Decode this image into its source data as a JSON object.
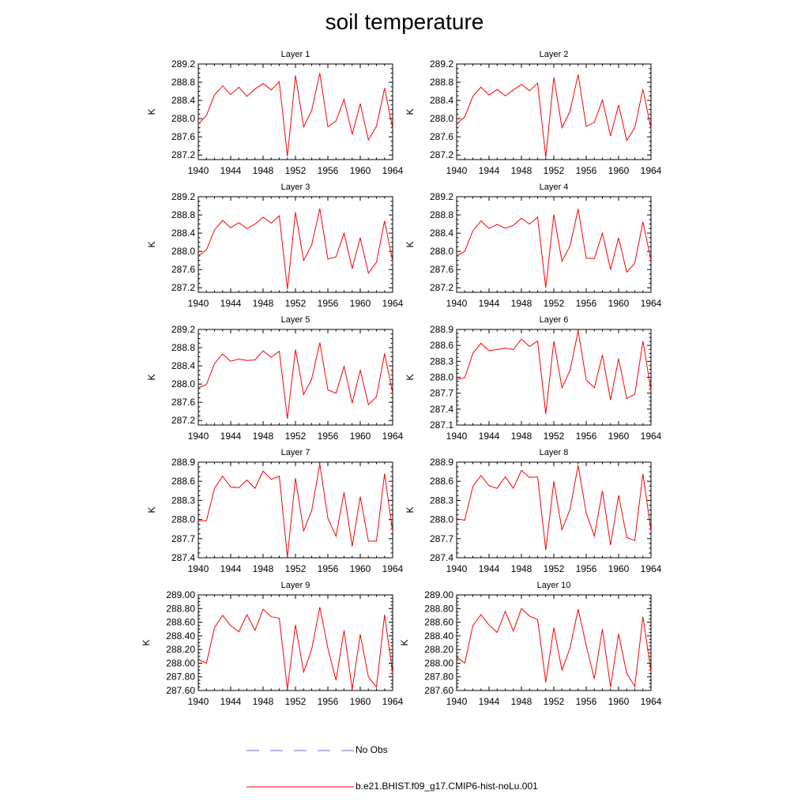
{
  "title": "soil temperature",
  "chart_data": [
    {
      "type": "line",
      "title": "Layer 1",
      "ylabel": "K",
      "xlim": [
        1940,
        1964
      ],
      "ylim": [
        287.1,
        289.2
      ],
      "yticks": [
        "287.2",
        "287.6",
        "288.0",
        "288.4",
        "288.8",
        "289.2"
      ],
      "xticks": [
        "1940",
        "1944",
        "1948",
        "1952",
        "1956",
        "1960",
        "1964"
      ],
      "x": [
        1940,
        1941,
        1942,
        1943,
        1944,
        1945,
        1946,
        1947,
        1948,
        1949,
        1950,
        1951,
        1952,
        1953,
        1954,
        1955,
        1956,
        1957,
        1958,
        1959,
        1960,
        1961,
        1962,
        1963,
        1964
      ],
      "series": [
        {
          "name": "b.e21.BHIST.f09_g17.CMIP6-hist-noLu.001",
          "values": [
            287.88,
            288.07,
            288.52,
            288.72,
            288.53,
            288.69,
            288.49,
            288.65,
            288.77,
            288.63,
            288.81,
            287.17,
            288.95,
            287.82,
            288.18,
            289.0,
            287.82,
            287.95,
            288.42,
            287.65,
            288.33,
            287.53,
            287.83,
            288.67,
            287.78
          ]
        }
      ]
    },
    {
      "type": "line",
      "title": "Layer 2",
      "ylabel": "K",
      "xlim": [
        1940,
        1964
      ],
      "ylim": [
        287.1,
        289.2
      ],
      "yticks": [
        "287.2",
        "287.6",
        "288.0",
        "288.4",
        "288.8",
        "289.2"
      ],
      "xticks": [
        "1940",
        "1944",
        "1948",
        "1952",
        "1956",
        "1960",
        "1964"
      ],
      "x": [
        1940,
        1941,
        1942,
        1943,
        1944,
        1945,
        1946,
        1947,
        1948,
        1949,
        1950,
        1951,
        1952,
        1953,
        1954,
        1955,
        1956,
        1957,
        1958,
        1959,
        1960,
        1961,
        1962,
        1963,
        1964
      ],
      "series": [
        {
          "name": "b.e21.BHIST.f09_g17.CMIP6-hist-noLu.001",
          "values": [
            287.88,
            288.04,
            288.49,
            288.69,
            288.52,
            288.64,
            288.5,
            288.63,
            288.75,
            288.61,
            288.78,
            287.15,
            288.91,
            287.8,
            288.16,
            288.97,
            287.83,
            287.92,
            288.41,
            287.62,
            288.3,
            287.52,
            287.8,
            288.65,
            287.78
          ]
        }
      ]
    },
    {
      "type": "line",
      "title": "Layer 3",
      "ylabel": "K",
      "xlim": [
        1940,
        1964
      ],
      "ylim": [
        287.1,
        289.2
      ],
      "yticks": [
        "287.2",
        "287.6",
        "288.0",
        "288.4",
        "288.8",
        "289.2"
      ],
      "xticks": [
        "1940",
        "1944",
        "1948",
        "1952",
        "1956",
        "1960",
        "1964"
      ],
      "x": [
        1940,
        1941,
        1942,
        1943,
        1944,
        1945,
        1946,
        1947,
        1948,
        1949,
        1950,
        1951,
        1952,
        1953,
        1954,
        1955,
        1956,
        1957,
        1958,
        1959,
        1960,
        1961,
        1962,
        1963,
        1964
      ],
      "series": [
        {
          "name": "b.e21.BHIST.f09_g17.CMIP6-hist-noLu.001",
          "values": [
            287.9,
            288.03,
            288.47,
            288.68,
            288.52,
            288.63,
            288.5,
            288.6,
            288.75,
            288.62,
            288.78,
            287.17,
            288.86,
            287.8,
            288.14,
            288.94,
            287.83,
            287.88,
            288.4,
            287.62,
            288.3,
            287.52,
            287.76,
            288.67,
            287.78
          ]
        }
      ]
    },
    {
      "type": "line",
      "title": "Layer 4",
      "ylabel": "K",
      "xlim": [
        1940,
        1964
      ],
      "ylim": [
        287.1,
        289.2
      ],
      "yticks": [
        "287.2",
        "287.6",
        "288.0",
        "288.4",
        "288.8",
        "289.2"
      ],
      "xticks": [
        "1940",
        "1944",
        "1948",
        "1952",
        "1956",
        "1960",
        "1964"
      ],
      "x": [
        1940,
        1941,
        1942,
        1943,
        1944,
        1945,
        1946,
        1947,
        1948,
        1949,
        1950,
        1951,
        1952,
        1953,
        1954,
        1955,
        1956,
        1957,
        1958,
        1959,
        1960,
        1961,
        1962,
        1963,
        1964
      ],
      "series": [
        {
          "name": "b.e21.BHIST.f09_g17.CMIP6-hist-noLu.001",
          "values": [
            287.9,
            288.0,
            288.45,
            288.67,
            288.5,
            288.59,
            288.51,
            288.57,
            288.73,
            288.6,
            288.75,
            287.2,
            288.81,
            287.78,
            288.12,
            288.93,
            287.85,
            287.84,
            288.4,
            287.6,
            288.3,
            287.54,
            287.74,
            288.65,
            287.8
          ]
        }
      ]
    },
    {
      "type": "line",
      "title": "Layer 5",
      "ylabel": "K",
      "xlim": [
        1940,
        1964
      ],
      "ylim": [
        287.1,
        289.2
      ],
      "yticks": [
        "287.2",
        "287.6",
        "288.0",
        "288.4",
        "288.8",
        "289.2"
      ],
      "xticks": [
        "1940",
        "1944",
        "1948",
        "1952",
        "1956",
        "1960",
        "1964"
      ],
      "x": [
        1940,
        1941,
        1942,
        1943,
        1944,
        1945,
        1946,
        1947,
        1948,
        1949,
        1950,
        1951,
        1952,
        1953,
        1954,
        1955,
        1956,
        1957,
        1958,
        1959,
        1960,
        1961,
        1962,
        1963,
        1964
      ],
      "series": [
        {
          "name": "b.e21.BHIST.f09_g17.CMIP6-hist-noLu.001",
          "values": [
            287.92,
            287.99,
            288.45,
            288.66,
            288.5,
            288.55,
            288.52,
            288.53,
            288.73,
            288.59,
            288.72,
            287.24,
            288.76,
            287.77,
            288.11,
            288.91,
            287.87,
            287.8,
            288.39,
            287.58,
            288.31,
            287.55,
            287.72,
            288.67,
            287.8
          ]
        }
      ]
    },
    {
      "type": "line",
      "title": "Layer 6",
      "ylabel": "K",
      "xlim": [
        1940,
        1964
      ],
      "ylim": [
        287.1,
        288.9
      ],
      "yticks": [
        "287.1",
        "287.4",
        "287.7",
        "288.0",
        "288.3",
        "288.6",
        "288.9"
      ],
      "xticks": [
        "1940",
        "1944",
        "1948",
        "1952",
        "1956",
        "1960",
        "1964"
      ],
      "x": [
        1940,
        1941,
        1942,
        1943,
        1944,
        1945,
        1946,
        1947,
        1948,
        1949,
        1950,
        1951,
        1952,
        1953,
        1954,
        1955,
        1956,
        1957,
        1958,
        1959,
        1960,
        1961,
        1962,
        1963,
        1964
      ],
      "series": [
        {
          "name": "b.e21.BHIST.f09_g17.CMIP6-hist-noLu.001",
          "values": [
            287.96,
            287.99,
            288.45,
            288.64,
            288.5,
            288.52,
            288.55,
            288.52,
            288.72,
            288.58,
            288.68,
            287.31,
            288.68,
            287.8,
            288.13,
            288.87,
            287.95,
            287.8,
            288.42,
            287.57,
            288.35,
            287.6,
            287.68,
            288.68,
            287.75
          ]
        }
      ]
    },
    {
      "type": "line",
      "title": "Layer 7",
      "ylabel": "K",
      "xlim": [
        1940,
        1964
      ],
      "ylim": [
        287.4,
        288.9
      ],
      "yticks": [
        "287.4",
        "287.7",
        "288.0",
        "288.3",
        "288.6",
        "288.9"
      ],
      "xticks": [
        "1940",
        "1944",
        "1948",
        "1952",
        "1956",
        "1960",
        "1964"
      ],
      "x": [
        1940,
        1941,
        1942,
        1943,
        1944,
        1945,
        1946,
        1947,
        1948,
        1949,
        1950,
        1951,
        1952,
        1953,
        1954,
        1955,
        1956,
        1957,
        1958,
        1959,
        1960,
        1961,
        1962,
        1963,
        1964
      ],
      "series": [
        {
          "name": "b.e21.BHIST.f09_g17.CMIP6-hist-noLu.001",
          "values": [
            287.98,
            287.98,
            288.49,
            288.68,
            288.51,
            288.5,
            288.62,
            288.49,
            288.76,
            288.63,
            288.68,
            287.41,
            288.65,
            287.82,
            288.14,
            288.87,
            288.02,
            287.74,
            288.43,
            287.58,
            288.36,
            287.66,
            287.66,
            288.72,
            287.8
          ]
        }
      ]
    },
    {
      "type": "line",
      "title": "Layer 8",
      "ylabel": "K",
      "xlim": [
        1940,
        1964
      ],
      "ylim": [
        287.4,
        288.9
      ],
      "yticks": [
        "287.4",
        "287.7",
        "288.0",
        "288.3",
        "288.6",
        "288.9"
      ],
      "xticks": [
        "1940",
        "1944",
        "1948",
        "1952",
        "1956",
        "1960",
        "1964"
      ],
      "x": [
        1940,
        1941,
        1942,
        1943,
        1944,
        1945,
        1946,
        1947,
        1948,
        1949,
        1950,
        1951,
        1952,
        1953,
        1954,
        1955,
        1956,
        1957,
        1958,
        1959,
        1960,
        1961,
        1962,
        1963,
        1964
      ],
      "series": [
        {
          "name": "b.e21.BHIST.f09_g17.CMIP6-hist-noLu.001",
          "values": [
            288.01,
            287.99,
            288.52,
            288.69,
            288.53,
            288.49,
            288.67,
            288.49,
            288.77,
            288.66,
            288.67,
            287.52,
            288.6,
            287.84,
            288.16,
            288.85,
            288.1,
            287.74,
            288.45,
            287.6,
            288.38,
            287.72,
            287.67,
            288.72,
            287.82
          ]
        }
      ]
    },
    {
      "type": "line",
      "title": "Layer 9",
      "ylabel": "K",
      "xlim": [
        1940,
        1964
      ],
      "ylim": [
        287.6,
        289.0
      ],
      "yticks": [
        "287.60",
        "287.80",
        "288.00",
        "288.20",
        "288.40",
        "288.60",
        "288.80",
        "289.00"
      ],
      "xticks": [
        "1940",
        "1944",
        "1948",
        "1952",
        "1956",
        "1960",
        "1964"
      ],
      "x": [
        1940,
        1941,
        1942,
        1943,
        1944,
        1945,
        1946,
        1947,
        1948,
        1949,
        1950,
        1951,
        1952,
        1953,
        1954,
        1955,
        1956,
        1957,
        1958,
        1959,
        1960,
        1961,
        1962,
        1963,
        1964
      ],
      "series": [
        {
          "name": "b.e21.BHIST.f09_g17.CMIP6-hist-noLu.001",
          "values": [
            288.05,
            288.0,
            288.52,
            288.7,
            288.55,
            288.46,
            288.71,
            288.48,
            288.79,
            288.68,
            288.66,
            287.62,
            288.56,
            287.87,
            288.2,
            288.82,
            288.22,
            287.75,
            288.48,
            287.62,
            288.42,
            287.8,
            287.65,
            288.71,
            287.85
          ]
        }
      ]
    },
    {
      "type": "line",
      "title": "Layer 10",
      "ylabel": "K",
      "xlim": [
        1940,
        1964
      ],
      "ylim": [
        287.6,
        289.0
      ],
      "yticks": [
        "287.60",
        "287.80",
        "288.00",
        "288.20",
        "288.40",
        "288.60",
        "288.80",
        "289.00"
      ],
      "xticks": [
        "1940",
        "1944",
        "1948",
        "1952",
        "1956",
        "1960",
        "1964"
      ],
      "x": [
        1940,
        1941,
        1942,
        1943,
        1944,
        1945,
        1946,
        1947,
        1948,
        1949,
        1950,
        1951,
        1952,
        1953,
        1954,
        1955,
        1956,
        1957,
        1958,
        1959,
        1960,
        1961,
        1962,
        1963,
        1964
      ],
      "series": [
        {
          "name": "b.e21.BHIST.f09_g17.CMIP6-hist-noLu.001",
          "values": [
            288.09,
            288.0,
            288.55,
            288.71,
            288.56,
            288.45,
            288.76,
            288.47,
            288.8,
            288.69,
            288.64,
            287.72,
            288.52,
            287.9,
            288.22,
            288.79,
            288.26,
            287.77,
            288.5,
            287.65,
            288.43,
            287.85,
            287.66,
            288.68,
            287.88
          ]
        }
      ]
    }
  ],
  "legend": {
    "items": [
      {
        "label": "No Obs",
        "color": "#6f6fd6",
        "style": "dashed"
      },
      {
        "label": "b.e21.BHIST.f09_g17.CMIP6-hist-noLu.001",
        "color": "#ff0000",
        "style": "solid"
      }
    ]
  }
}
